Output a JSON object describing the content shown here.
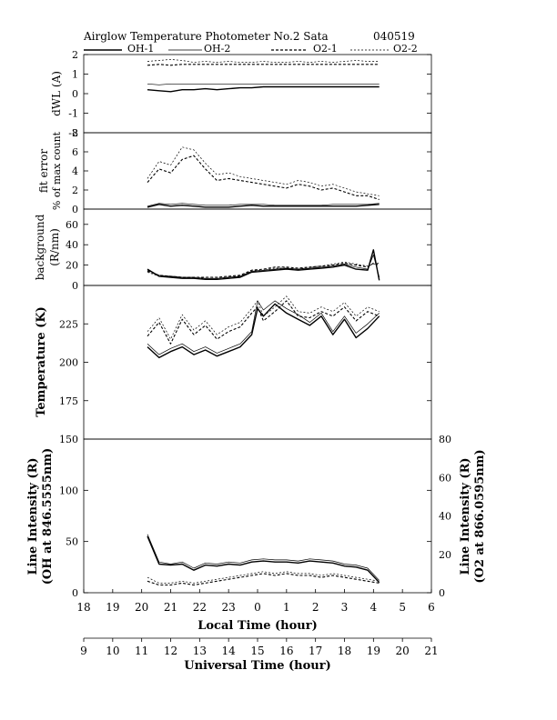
{
  "header": {
    "title": "Airglow Temperature Photometer No.2  Sata",
    "date": "040519"
  },
  "legend": [
    {
      "name": "OH-1",
      "style": "solid-thick"
    },
    {
      "name": "OH-2",
      "style": "solid-thin"
    },
    {
      "name": "O2-1",
      "style": "dashed-thick"
    },
    {
      "name": "O2-2",
      "style": "dashed-thin"
    }
  ],
  "chart_data": [
    {
      "type": "line",
      "ylabel": "dWL (A)",
      "ylim": [
        -2,
        2
      ],
      "yticks": [
        "2",
        "1",
        "0",
        "-1",
        "-2"
      ],
      "x": [
        20.2,
        20.6,
        21.0,
        21.4,
        21.8,
        22.2,
        22.6,
        23.0,
        23.4,
        23.8,
        24.2,
        24.6,
        25.0,
        25.4,
        25.8,
        26.2,
        26.6,
        27.0,
        27.4,
        27.8,
        28.2
      ],
      "series": [
        {
          "name": "OH-1",
          "values": [
            0.2,
            0.15,
            0.1,
            0.2,
            0.2,
            0.25,
            0.2,
            0.25,
            0.3,
            0.3,
            0.35,
            0.35,
            0.35,
            0.35,
            0.35,
            0.35,
            0.35,
            0.35,
            0.35,
            0.35,
            0.35
          ]
        },
        {
          "name": "OH-2",
          "values": [
            0.5,
            0.45,
            0.5,
            0.5,
            0.5,
            0.5,
            0.5,
            0.5,
            0.5,
            0.5,
            0.5,
            0.5,
            0.5,
            0.5,
            0.5,
            0.5,
            0.5,
            0.5,
            0.5,
            0.5,
            0.5
          ]
        },
        {
          "name": "O2-1",
          "values": [
            1.45,
            1.5,
            1.45,
            1.5,
            1.5,
            1.5,
            1.5,
            1.5,
            1.5,
            1.5,
            1.5,
            1.5,
            1.5,
            1.5,
            1.5,
            1.5,
            1.5,
            1.5,
            1.5,
            1.5,
            1.5
          ]
        },
        {
          "name": "O2-2",
          "values": [
            1.65,
            1.7,
            1.75,
            1.7,
            1.6,
            1.65,
            1.6,
            1.65,
            1.6,
            1.6,
            1.65,
            1.6,
            1.6,
            1.65,
            1.6,
            1.65,
            1.6,
            1.65,
            1.7,
            1.65,
            1.65
          ]
        }
      ]
    },
    {
      "type": "line",
      "ylabel": "fit error",
      "ylabel2": "% of max count",
      "ylim": [
        0,
        8
      ],
      "yticks": [
        "8",
        "6",
        "4",
        "2",
        "0"
      ],
      "x": [
        20.2,
        20.6,
        21.0,
        21.4,
        21.8,
        22.2,
        22.6,
        23.0,
        23.4,
        23.8,
        24.2,
        24.6,
        25.0,
        25.4,
        25.8,
        26.2,
        26.6,
        27.0,
        27.4,
        27.8,
        28.2
      ],
      "series": [
        {
          "name": "OH-1",
          "values": [
            0.2,
            0.5,
            0.3,
            0.4,
            0.3,
            0.2,
            0.2,
            0.2,
            0.3,
            0.4,
            0.3,
            0.3,
            0.3,
            0.3,
            0.3,
            0.3,
            0.3,
            0.3,
            0.3,
            0.4,
            0.5
          ]
        },
        {
          "name": "OH-2",
          "values": [
            0.3,
            0.6,
            0.5,
            0.6,
            0.5,
            0.4,
            0.4,
            0.4,
            0.5,
            0.5,
            0.5,
            0.4,
            0.4,
            0.4,
            0.4,
            0.4,
            0.5,
            0.5,
            0.5,
            0.5,
            0.6
          ]
        },
        {
          "name": "O2-1",
          "values": [
            2.8,
            4.2,
            3.8,
            5.2,
            5.6,
            4.2,
            3.0,
            3.2,
            3.0,
            2.8,
            2.6,
            2.4,
            2.2,
            2.6,
            2.4,
            2.0,
            2.2,
            1.8,
            1.4,
            1.4,
            1.0
          ]
        },
        {
          "name": "O2-2",
          "values": [
            3.2,
            5.0,
            4.6,
            6.5,
            6.2,
            4.8,
            3.6,
            3.8,
            3.4,
            3.2,
            3.0,
            2.8,
            2.6,
            3.0,
            2.8,
            2.4,
            2.6,
            2.2,
            1.8,
            1.6,
            1.4
          ]
        }
      ]
    },
    {
      "type": "line",
      "ylabel": "background",
      "ylabel2": "(R/nm)",
      "ylim": [
        0,
        75
      ],
      "yticks": [
        "60",
        "40",
        "20",
        "0"
      ],
      "x": [
        20.2,
        20.6,
        21.0,
        21.4,
        21.8,
        22.2,
        22.6,
        23.0,
        23.4,
        23.8,
        24.2,
        24.6,
        25.0,
        25.4,
        25.8,
        26.2,
        26.6,
        27.0,
        27.4,
        27.8,
        28.0,
        28.2
      ],
      "series": [
        {
          "name": "OH-1",
          "values": [
            16,
            9,
            8,
            7,
            7,
            6,
            6,
            7,
            8,
            13,
            14,
            15,
            16,
            15,
            16,
            17,
            18,
            20,
            16,
            15,
            35,
            5
          ]
        },
        {
          "name": "OH-2",
          "values": [
            15,
            10,
            9,
            8,
            8,
            7,
            7,
            8,
            9,
            14,
            15,
            16,
            17,
            16,
            17,
            18,
            19,
            21,
            18,
            16,
            30,
            8
          ]
        },
        {
          "name": "O2-1",
          "values": [
            14,
            10,
            9,
            8,
            8,
            8,
            8,
            9,
            10,
            15,
            16,
            18,
            18,
            17,
            18,
            19,
            20,
            22,
            20,
            18,
            22,
            20
          ]
        },
        {
          "name": "O2-2",
          "values": [
            13,
            9,
            9,
            8,
            7,
            7,
            7,
            8,
            9,
            14,
            15,
            17,
            17,
            16,
            18,
            19,
            21,
            23,
            21,
            19,
            21,
            22
          ]
        }
      ]
    },
    {
      "type": "line",
      "ylabel": "Temperature (K)",
      "ylim": [
        150,
        250
      ],
      "yticks": [
        "225",
        "200",
        "175"
      ],
      "x": [
        20.2,
        20.6,
        21.0,
        21.4,
        21.8,
        22.2,
        22.6,
        23.0,
        23.4,
        23.8,
        24.0,
        24.2,
        24.6,
        25.0,
        25.4,
        25.8,
        26.2,
        26.6,
        27.0,
        27.4,
        27.8,
        28.2
      ],
      "series": [
        {
          "name": "OH-1",
          "values": [
            210,
            203,
            207,
            210,
            205,
            208,
            204,
            207,
            210,
            218,
            235,
            230,
            238,
            232,
            228,
            224,
            230,
            218,
            228,
            216,
            222,
            230
          ]
        },
        {
          "name": "OH-2",
          "values": [
            212,
            205,
            209,
            212,
            207,
            210,
            206,
            209,
            212,
            220,
            240,
            234,
            240,
            235,
            231,
            226,
            232,
            220,
            230,
            219,
            225,
            232
          ]
        },
        {
          "name": "O2-1",
          "values": [
            217,
            226,
            212,
            228,
            218,
            224,
            215,
            220,
            223,
            232,
            236,
            227,
            233,
            240,
            230,
            229,
            233,
            230,
            236,
            227,
            233,
            230
          ]
        },
        {
          "name": "O2-2",
          "values": [
            220,
            229,
            215,
            231,
            221,
            227,
            218,
            223,
            226,
            235,
            240,
            230,
            236,
            243,
            233,
            232,
            236,
            233,
            239,
            230,
            236,
            233
          ]
        }
      ]
    },
    {
      "type": "line",
      "ylabel": "Line Intensity (R)",
      "ylabel2": "(OH at 846.5555nm)",
      "ylabel_right": "Line Intensity (R)",
      "ylabel_right2": "(O2 at 866.0595nm)",
      "ylim": [
        0,
        150
      ],
      "ylim_right": [
        0,
        80
      ],
      "yticks": [
        "150",
        "100",
        "50",
        "0"
      ],
      "yticks_right": [
        "80",
        "60",
        "40",
        "20",
        "0"
      ],
      "x": [
        20.2,
        20.6,
        21.0,
        21.4,
        21.8,
        22.2,
        22.6,
        23.0,
        23.4,
        23.8,
        24.2,
        24.6,
        25.0,
        25.4,
        25.8,
        26.2,
        26.6,
        27.0,
        27.4,
        27.8,
        28.2
      ],
      "series": [
        {
          "name": "OH-1",
          "values": [
            55,
            28,
            27,
            28,
            22,
            27,
            26,
            28,
            27,
            30,
            31,
            30,
            30,
            29,
            31,
            30,
            29,
            26,
            25,
            22,
            10
          ]
        },
        {
          "name": "OH-2",
          "values": [
            57,
            30,
            28,
            30,
            24,
            29,
            28,
            30,
            29,
            32,
            33,
            32,
            32,
            31,
            33,
            32,
            31,
            28,
            27,
            24,
            12
          ]
        },
        {
          "name": "O2-1",
          "axis": "right",
          "values": [
            6,
            4,
            4,
            5,
            4,
            5,
            6,
            7,
            8,
            9,
            10,
            9,
            10,
            9,
            9,
            8,
            9,
            8,
            7,
            6,
            5
          ]
        },
        {
          "name": "O2-2",
          "axis": "right",
          "values": [
            8,
            5,
            5,
            6,
            5,
            6,
            7,
            8,
            9,
            10,
            11,
            10,
            11,
            10,
            10,
            9,
            10,
            9,
            8,
            7,
            6
          ]
        }
      ]
    }
  ],
  "xaxis": {
    "local_label": "Local Time (hour)",
    "local_ticks": [
      "18",
      "19",
      "20",
      "21",
      "22",
      "23",
      "0",
      "1",
      "2",
      "3",
      "4",
      "5",
      "6"
    ],
    "ut_label": "Universal Time (hour)",
    "ut_ticks": [
      "9",
      "10",
      "11",
      "12",
      "13",
      "14",
      "15",
      "16",
      "17",
      "18",
      "19",
      "20",
      "21"
    ]
  }
}
